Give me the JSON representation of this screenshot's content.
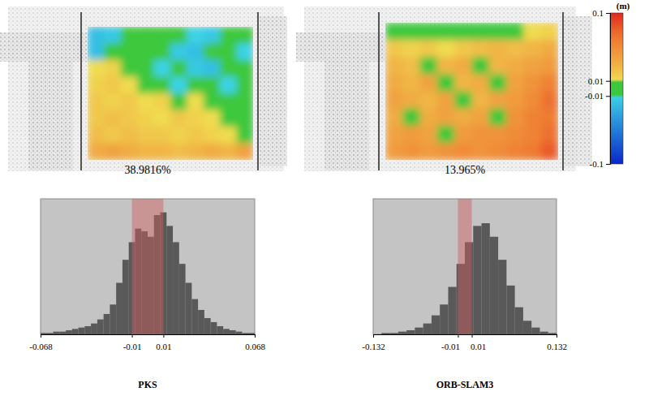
{
  "chart_data": [
    {
      "type": "heatmap",
      "tick_labels": false,
      "cells": [
        [
          -0.02,
          -0.015,
          0.0,
          -0.005,
          0.0,
          0.005,
          -0.01,
          -0.015,
          -0.005,
          0.0
        ],
        [
          -0.02,
          0.0,
          0.005,
          0.0,
          -0.005,
          -0.015,
          -0.02,
          -0.005,
          0.0,
          -0.01
        ],
        [
          0.01,
          0.015,
          0.005,
          0.0,
          -0.01,
          0.0,
          -0.015,
          -0.02,
          0.005,
          0.0
        ],
        [
          0.015,
          0.02,
          0.01,
          0.005,
          0.0,
          -0.01,
          0.0,
          0.005,
          -0.01,
          0.0
        ],
        [
          0.02,
          0.015,
          0.02,
          0.01,
          0.015,
          0.005,
          0.01,
          0.0,
          0.005,
          -0.005
        ],
        [
          0.02,
          0.025,
          0.02,
          0.015,
          0.01,
          0.02,
          0.015,
          0.01,
          0.005,
          0.0
        ],
        [
          0.025,
          0.02,
          0.025,
          0.02,
          0.02,
          0.015,
          0.02,
          0.015,
          0.01,
          0.005
        ],
        [
          0.035,
          0.04,
          0.035,
          0.03,
          0.03,
          0.025,
          0.03,
          0.035,
          0.03,
          0.04
        ]
      ]
    },
    {
      "type": "heatmap",
      "tick_labels": false,
      "cells": [
        [
          0.0,
          0.0,
          0.005,
          0.0,
          0.0,
          0.005,
          0.0,
          0.005,
          0.01,
          0.015
        ],
        [
          0.02,
          0.015,
          0.02,
          0.01,
          0.02,
          0.025,
          0.03,
          0.025,
          0.03,
          0.035
        ],
        [
          0.03,
          0.025,
          0.0,
          0.03,
          0.035,
          0.0,
          0.03,
          0.035,
          0.04,
          0.045
        ],
        [
          0.035,
          0.03,
          0.04,
          0.005,
          0.03,
          0.035,
          0.0,
          0.04,
          0.05,
          0.06
        ],
        [
          0.04,
          0.035,
          0.03,
          0.04,
          0.0,
          0.03,
          0.04,
          0.045,
          0.055,
          0.07
        ],
        [
          0.035,
          0.0,
          0.035,
          0.04,
          0.035,
          0.04,
          0.0,
          0.05,
          0.06,
          0.065
        ],
        [
          0.04,
          0.045,
          0.04,
          0.0,
          0.045,
          0.05,
          0.05,
          0.055,
          0.06,
          0.07
        ],
        [
          0.045,
          0.05,
          0.045,
          0.05,
          0.055,
          0.05,
          0.055,
          0.06,
          0.065,
          0.08
        ]
      ],
      "colorbar": {
        "range": [
          -0.1,
          0.1
        ],
        "ticks": [
          -0.1,
          -0.01,
          0.01,
          0.1
        ],
        "label": "(m)"
      }
    },
    {
      "type": "histogram",
      "title": "38.9816%",
      "xlabel": "PKS",
      "tick_labels": "x",
      "bins": [
        -0.068,
        -0.064,
        -0.06,
        -0.056,
        -0.052,
        -0.048,
        -0.044,
        -0.04,
        -0.036,
        -0.032,
        -0.028,
        -0.024,
        -0.02,
        -0.016,
        -0.012,
        -0.008,
        -0.004,
        0,
        0.004,
        0.008,
        0.012,
        0.016,
        0.02,
        0.024,
        0.028,
        0.032,
        0.036,
        0.04,
        0.044,
        0.048,
        0.052,
        0.056,
        0.06,
        0.064,
        0.068
      ],
      "values": [
        1,
        1,
        2,
        2,
        3,
        4,
        5,
        6,
        8,
        11,
        15,
        22,
        38,
        55,
        68,
        78,
        76,
        72,
        88,
        90,
        80,
        68,
        52,
        38,
        26,
        18,
        12,
        9,
        6,
        4,
        3,
        2,
        1,
        1
      ],
      "band": [
        -0.01,
        0.01
      ],
      "xlim": [
        -0.068,
        0.068
      ],
      "xticks": [
        -0.068,
        -0.01,
        0.01,
        0.068
      ],
      "ylim": [
        0,
        100
      ]
    },
    {
      "type": "histogram",
      "title": "13.965%",
      "xlabel": "ORB-SLAM3",
      "tick_labels": "x",
      "bins": [
        -0.132,
        -0.12,
        -0.108,
        -0.096,
        -0.084,
        -0.072,
        -0.06,
        -0.048,
        -0.036,
        -0.024,
        -0.012,
        0,
        0.012,
        0.024,
        0.036,
        0.048,
        0.06,
        0.072,
        0.084,
        0.096,
        0.108,
        0.12,
        0.132
      ],
      "values": [
        0,
        1,
        1,
        2,
        3,
        5,
        8,
        14,
        22,
        35,
        52,
        68,
        80,
        82,
        72,
        55,
        36,
        20,
        10,
        5,
        2,
        1
      ],
      "band": [
        -0.01,
        0.01
      ],
      "xlim": [
        -0.132,
        0.132
      ],
      "xticks": [
        -0.132,
        -0.01,
        0.01,
        0.132
      ],
      "ylim": [
        0,
        100
      ]
    }
  ]
}
